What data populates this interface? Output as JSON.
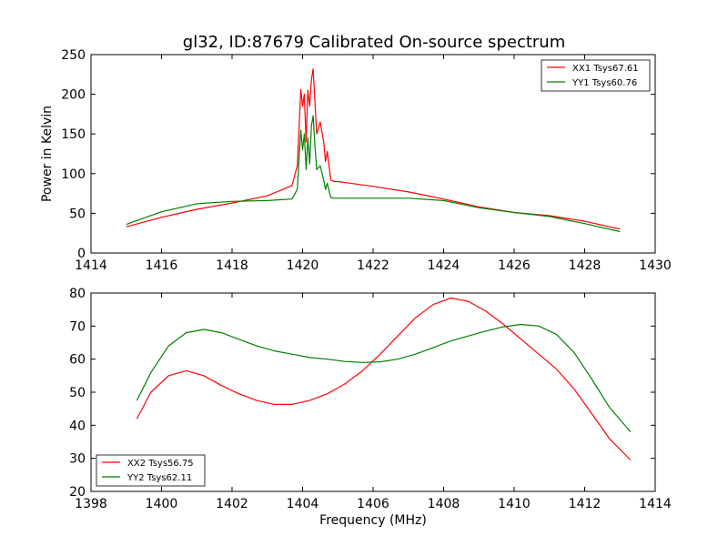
{
  "title": "gl32, ID:87679 Calibrated On-source spectrum",
  "colors": {
    "red": "#ff0000",
    "green": "#008000"
  },
  "chart_data": [
    {
      "type": "line",
      "ylabel": "Power in Kelvin",
      "xlabel": "",
      "xlim": [
        1414,
        1430
      ],
      "ylim": [
        0,
        250
      ],
      "xticks": [
        "1414",
        "1416",
        "1418",
        "1420",
        "1422",
        "1424",
        "1426",
        "1428",
        "1430"
      ],
      "yticks": [
        "0",
        "50",
        "100",
        "150",
        "200",
        "250"
      ],
      "legend": "top-right",
      "series": [
        {
          "name": "XX1 Tsys67.61",
          "color": "#ff0000",
          "x": [
            1415.0,
            1416.0,
            1417.0,
            1418.0,
            1419.0,
            1419.7,
            1419.85,
            1419.95,
            1420.0,
            1420.05,
            1420.1,
            1420.15,
            1420.2,
            1420.25,
            1420.3,
            1420.35,
            1420.4,
            1420.5,
            1420.6,
            1420.65,
            1420.7,
            1420.8,
            1420.9,
            1421.0,
            1422.0,
            1423.0,
            1424.0,
            1425.0,
            1426.0,
            1427.0,
            1428.0,
            1429.0
          ],
          "y": [
            33,
            45,
            55,
            63,
            72,
            85,
            110,
            206,
            185,
            200,
            140,
            205,
            185,
            218,
            232,
            190,
            150,
            165,
            140,
            115,
            128,
            92,
            90,
            90,
            84,
            77,
            68,
            58,
            51,
            47,
            40,
            30
          ]
        },
        {
          "name": "YY1 Tsys60.76",
          "color": "#008000",
          "x": [
            1415.0,
            1416.0,
            1417.0,
            1418.0,
            1419.0,
            1419.7,
            1419.85,
            1419.95,
            1420.0,
            1420.05,
            1420.1,
            1420.15,
            1420.2,
            1420.25,
            1420.3,
            1420.35,
            1420.4,
            1420.5,
            1420.6,
            1420.65,
            1420.7,
            1420.8,
            1420.9,
            1421.0,
            1422.0,
            1423.0,
            1424.0,
            1425.0,
            1426.0,
            1427.0,
            1428.0,
            1429.0
          ],
          "y": [
            36,
            52,
            62,
            65,
            66,
            68,
            80,
            155,
            130,
            150,
            105,
            145,
            112,
            160,
            173,
            135,
            105,
            110,
            92,
            80,
            88,
            70,
            69,
            69,
            69,
            69,
            66,
            57,
            51,
            46,
            37,
            27
          ]
        }
      ]
    },
    {
      "type": "line",
      "ylabel": "",
      "xlabel": "Frequency (MHz)",
      "xlim": [
        1398,
        1414
      ],
      "ylim": [
        20,
        80
      ],
      "xticks": [
        "1398",
        "1400",
        "1402",
        "1404",
        "1406",
        "1408",
        "1410",
        "1412",
        "1414"
      ],
      "yticks": [
        "20",
        "30",
        "40",
        "50",
        "60",
        "70",
        "80"
      ],
      "legend": "bottom-left",
      "series": [
        {
          "name": "XX2 Tsys56.75",
          "color": "#ff0000",
          "x": [
            1399.3,
            1399.7,
            1400.2,
            1400.7,
            1401.2,
            1401.7,
            1402.2,
            1402.7,
            1403.2,
            1403.7,
            1404.2,
            1404.7,
            1405.2,
            1405.7,
            1406.2,
            1406.7,
            1407.2,
            1407.7,
            1408.2,
            1408.7,
            1409.2,
            1409.7,
            1410.2,
            1410.7,
            1411.2,
            1411.7,
            1412.2,
            1412.7,
            1413.3
          ],
          "y": [
            42,
            50,
            55,
            56.5,
            55,
            52,
            49.5,
            47.5,
            46.3,
            46.3,
            47.5,
            49.5,
            52.5,
            56.5,
            61.5,
            67,
            72.5,
            76.5,
            78.5,
            77.5,
            74.5,
            70.5,
            66,
            61.5,
            57,
            51,
            43.5,
            36,
            29.5
          ]
        },
        {
          "name": "YY2 Tsys62.11",
          "color": "#008000",
          "x": [
            1399.3,
            1399.7,
            1400.2,
            1400.7,
            1401.2,
            1401.7,
            1402.2,
            1402.7,
            1403.2,
            1403.7,
            1404.2,
            1404.7,
            1405.2,
            1405.7,
            1406.2,
            1406.7,
            1407.2,
            1407.7,
            1408.2,
            1408.7,
            1409.2,
            1409.7,
            1410.2,
            1410.7,
            1411.2,
            1411.7,
            1412.2,
            1412.7,
            1413.3
          ],
          "y": [
            47.5,
            56,
            64,
            68,
            69,
            68,
            66,
            64,
            62.5,
            61.5,
            60.5,
            60,
            59.3,
            59,
            59.2,
            60,
            61.5,
            63.5,
            65.5,
            67,
            68.5,
            69.8,
            70.5,
            70,
            67.5,
            62,
            54,
            45.5,
            38
          ]
        }
      ]
    }
  ]
}
